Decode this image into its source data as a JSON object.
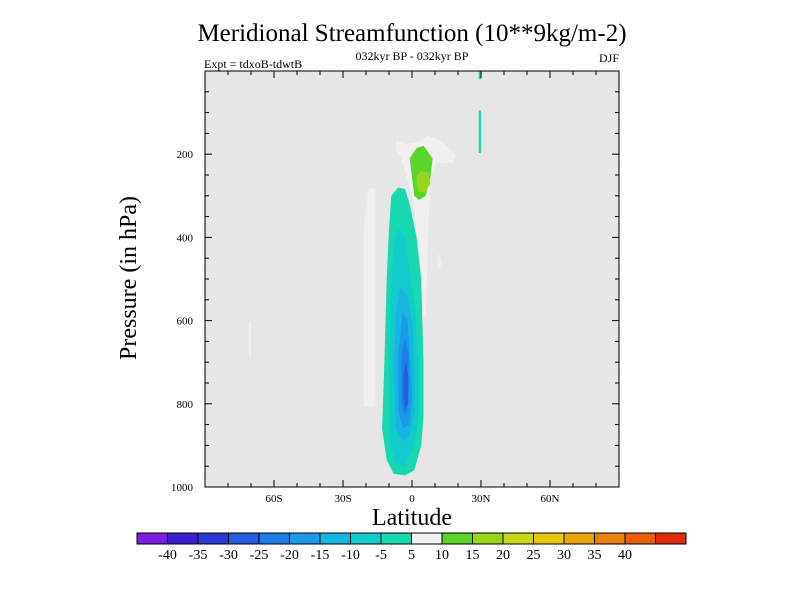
{
  "chart_data": {
    "type": "heatmap",
    "title": "Meridional Streamfunction (10**9kg/m-2)",
    "subtitle": "032kyr BP - 032kyr BP",
    "left_annotation": "Expt = tdxoB-tdwtB",
    "right_annotation": "DJF",
    "xlabel": "Latitude",
    "ylabel": "Pressure (in hPa)",
    "xlim": [
      -90,
      90
    ],
    "ylim": [
      0,
      1000
    ],
    "y_inverted": true,
    "x_ticks": [
      {
        "value": -60,
        "label": "60S"
      },
      {
        "value": -30,
        "label": "30S"
      },
      {
        "value": 0,
        "label": "0"
      },
      {
        "value": 30,
        "label": "30N"
      },
      {
        "value": 60,
        "label": "60N"
      }
    ],
    "y_ticks": [
      {
        "value": 200,
        "label": "200"
      },
      {
        "value": 400,
        "label": "400"
      },
      {
        "value": 600,
        "label": "600"
      },
      {
        "value": 800,
        "label": "800"
      },
      {
        "value": 1000,
        "label": "1000"
      }
    ],
    "background": "#e6e6e6",
    "colorbar": {
      "labels": [
        "-40",
        "-35",
        "-30",
        "-25",
        "-20",
        "-15",
        "-10",
        "-5",
        "5",
        "10",
        "15",
        "20",
        "25",
        "30",
        "35",
        "40"
      ],
      "colors": [
        "#7a1fe0",
        "#3c1ed0",
        "#2a3ad8",
        "#245ee0",
        "#1e7ee6",
        "#1a9ae8",
        "#16b6e0",
        "#12cccc",
        "#18d8b0",
        "#f0f0f0",
        "#5ad62a",
        "#96d61c",
        "#c8d814",
        "#e6c80c",
        "#e8a60a",
        "#e88208",
        "#e85e06",
        "#e02c04"
      ]
    },
    "regions": [
      {
        "name": "positive-cell-60s",
        "value": 5,
        "points": [
          [
            -71,
            604
          ],
          [
            -70,
            604
          ],
          [
            -70,
            688
          ],
          [
            -71,
            688
          ]
        ]
      },
      {
        "name": "positive-cell-tropical-south",
        "value": 5,
        "points": [
          [
            -18,
            281
          ],
          [
            -16,
            284
          ],
          [
            -16,
            802
          ],
          [
            -18,
            808
          ],
          [
            -21,
            805
          ],
          [
            -21,
            380
          ],
          [
            -19,
            285
          ]
        ]
      },
      {
        "name": "positive-cell-upper",
        "value": 5,
        "points": [
          [
            -7,
            167
          ],
          [
            -3,
            176
          ],
          [
            3,
            170
          ],
          [
            7,
            155
          ],
          [
            13,
            170
          ],
          [
            19,
            200
          ],
          [
            18,
            220
          ],
          [
            11,
            221
          ],
          [
            8,
            250
          ],
          [
            7,
            400
          ],
          [
            6,
            588
          ],
          [
            4,
            592
          ],
          [
            3,
            470
          ],
          [
            1,
            320
          ],
          [
            -2,
            260
          ],
          [
            -5,
            205
          ],
          [
            -7,
            190
          ]
        ]
      },
      {
        "name": "positive-cell-15n",
        "value": 5,
        "points": [
          [
            11,
            448
          ],
          [
            12,
            440
          ],
          [
            13,
            460
          ],
          [
            12,
            476
          ],
          [
            11,
            470
          ]
        ]
      },
      {
        "name": "positive-cell-upper-inner",
        "value": 10,
        "points": [
          [
            -1,
            210
          ],
          [
            2,
            185
          ],
          [
            5,
            180
          ],
          [
            9,
            210
          ],
          [
            8,
            255
          ],
          [
            6,
            300
          ],
          [
            3,
            310
          ],
          [
            1,
            300
          ],
          [
            0,
            255
          ]
        ]
      },
      {
        "name": "positive-cell-upper-core",
        "value": 15,
        "points": [
          [
            2,
            252
          ],
          [
            4,
            240
          ],
          [
            7,
            245
          ],
          [
            8,
            270
          ],
          [
            6,
            290
          ],
          [
            3,
            292
          ],
          [
            2,
            270
          ]
        ]
      },
      {
        "name": "negative-tail-30n",
        "value": -5,
        "points": [
          [
            29,
            0
          ],
          [
            30,
            0
          ],
          [
            30,
            20
          ],
          [
            29,
            20
          ]
        ]
      },
      {
        "name": "negative-tail-30n-upper",
        "value": -5,
        "points": [
          [
            29,
            95
          ],
          [
            30,
            95
          ],
          [
            30,
            197
          ],
          [
            29,
            197
          ]
        ]
      },
      {
        "name": "negative-cell-main",
        "value": -5,
        "points": [
          [
            -6,
            280
          ],
          [
            -3,
            284
          ],
          [
            -1,
            320
          ],
          [
            2,
            400
          ],
          [
            4,
            500
          ],
          [
            5,
            700
          ],
          [
            5,
            830
          ],
          [
            4,
            900
          ],
          [
            1,
            960
          ],
          [
            -3,
            972
          ],
          [
            -8,
            968
          ],
          [
            -11,
            935
          ],
          [
            -13,
            860
          ],
          [
            -12,
            700
          ],
          [
            -11,
            500
          ],
          [
            -10,
            380
          ],
          [
            -9,
            300
          ]
        ]
      },
      {
        "name": "negative-cell-level2",
        "value": -10,
        "points": [
          [
            -6,
            380
          ],
          [
            -3,
            400
          ],
          [
            -1,
            480
          ],
          [
            1,
            560
          ],
          [
            3,
            700
          ],
          [
            3,
            830
          ],
          [
            1,
            900
          ],
          [
            -3,
            950
          ],
          [
            -7,
            942
          ],
          [
            -10,
            880
          ],
          [
            -10,
            700
          ],
          [
            -9,
            500
          ],
          [
            -8,
            420
          ]
        ]
      },
      {
        "name": "negative-cell-level3",
        "value": -15,
        "points": [
          [
            -5,
            520
          ],
          [
            -2,
            540
          ],
          [
            0,
            600
          ],
          [
            1,
            700
          ],
          [
            1,
            820
          ],
          [
            -1,
            880
          ],
          [
            -4,
            890
          ],
          [
            -7,
            860
          ],
          [
            -8,
            700
          ],
          [
            -7,
            580
          ]
        ]
      },
      {
        "name": "negative-cell-level4",
        "value": -20,
        "points": [
          [
            -4,
            580
          ],
          [
            -2,
            600
          ],
          [
            -1,
            680
          ],
          [
            0,
            780
          ],
          [
            -1,
            850
          ],
          [
            -4,
            860
          ],
          [
            -6,
            820
          ],
          [
            -6,
            680
          ]
        ]
      },
      {
        "name": "negative-cell-level5",
        "value": -25,
        "points": [
          [
            -3,
            640
          ],
          [
            -1.5,
            680
          ],
          [
            -1.5,
            800
          ],
          [
            -3,
            830
          ],
          [
            -4.5,
            800
          ],
          [
            -4.5,
            680
          ]
        ]
      },
      {
        "name": "negative-cell-core",
        "value": -30,
        "points": [
          [
            -2.5,
            700
          ],
          [
            -1.5,
            740
          ],
          [
            -1.8,
            800
          ],
          [
            -3,
            810
          ],
          [
            -3.8,
            780
          ],
          [
            -3.6,
            720
          ]
        ]
      }
    ]
  }
}
